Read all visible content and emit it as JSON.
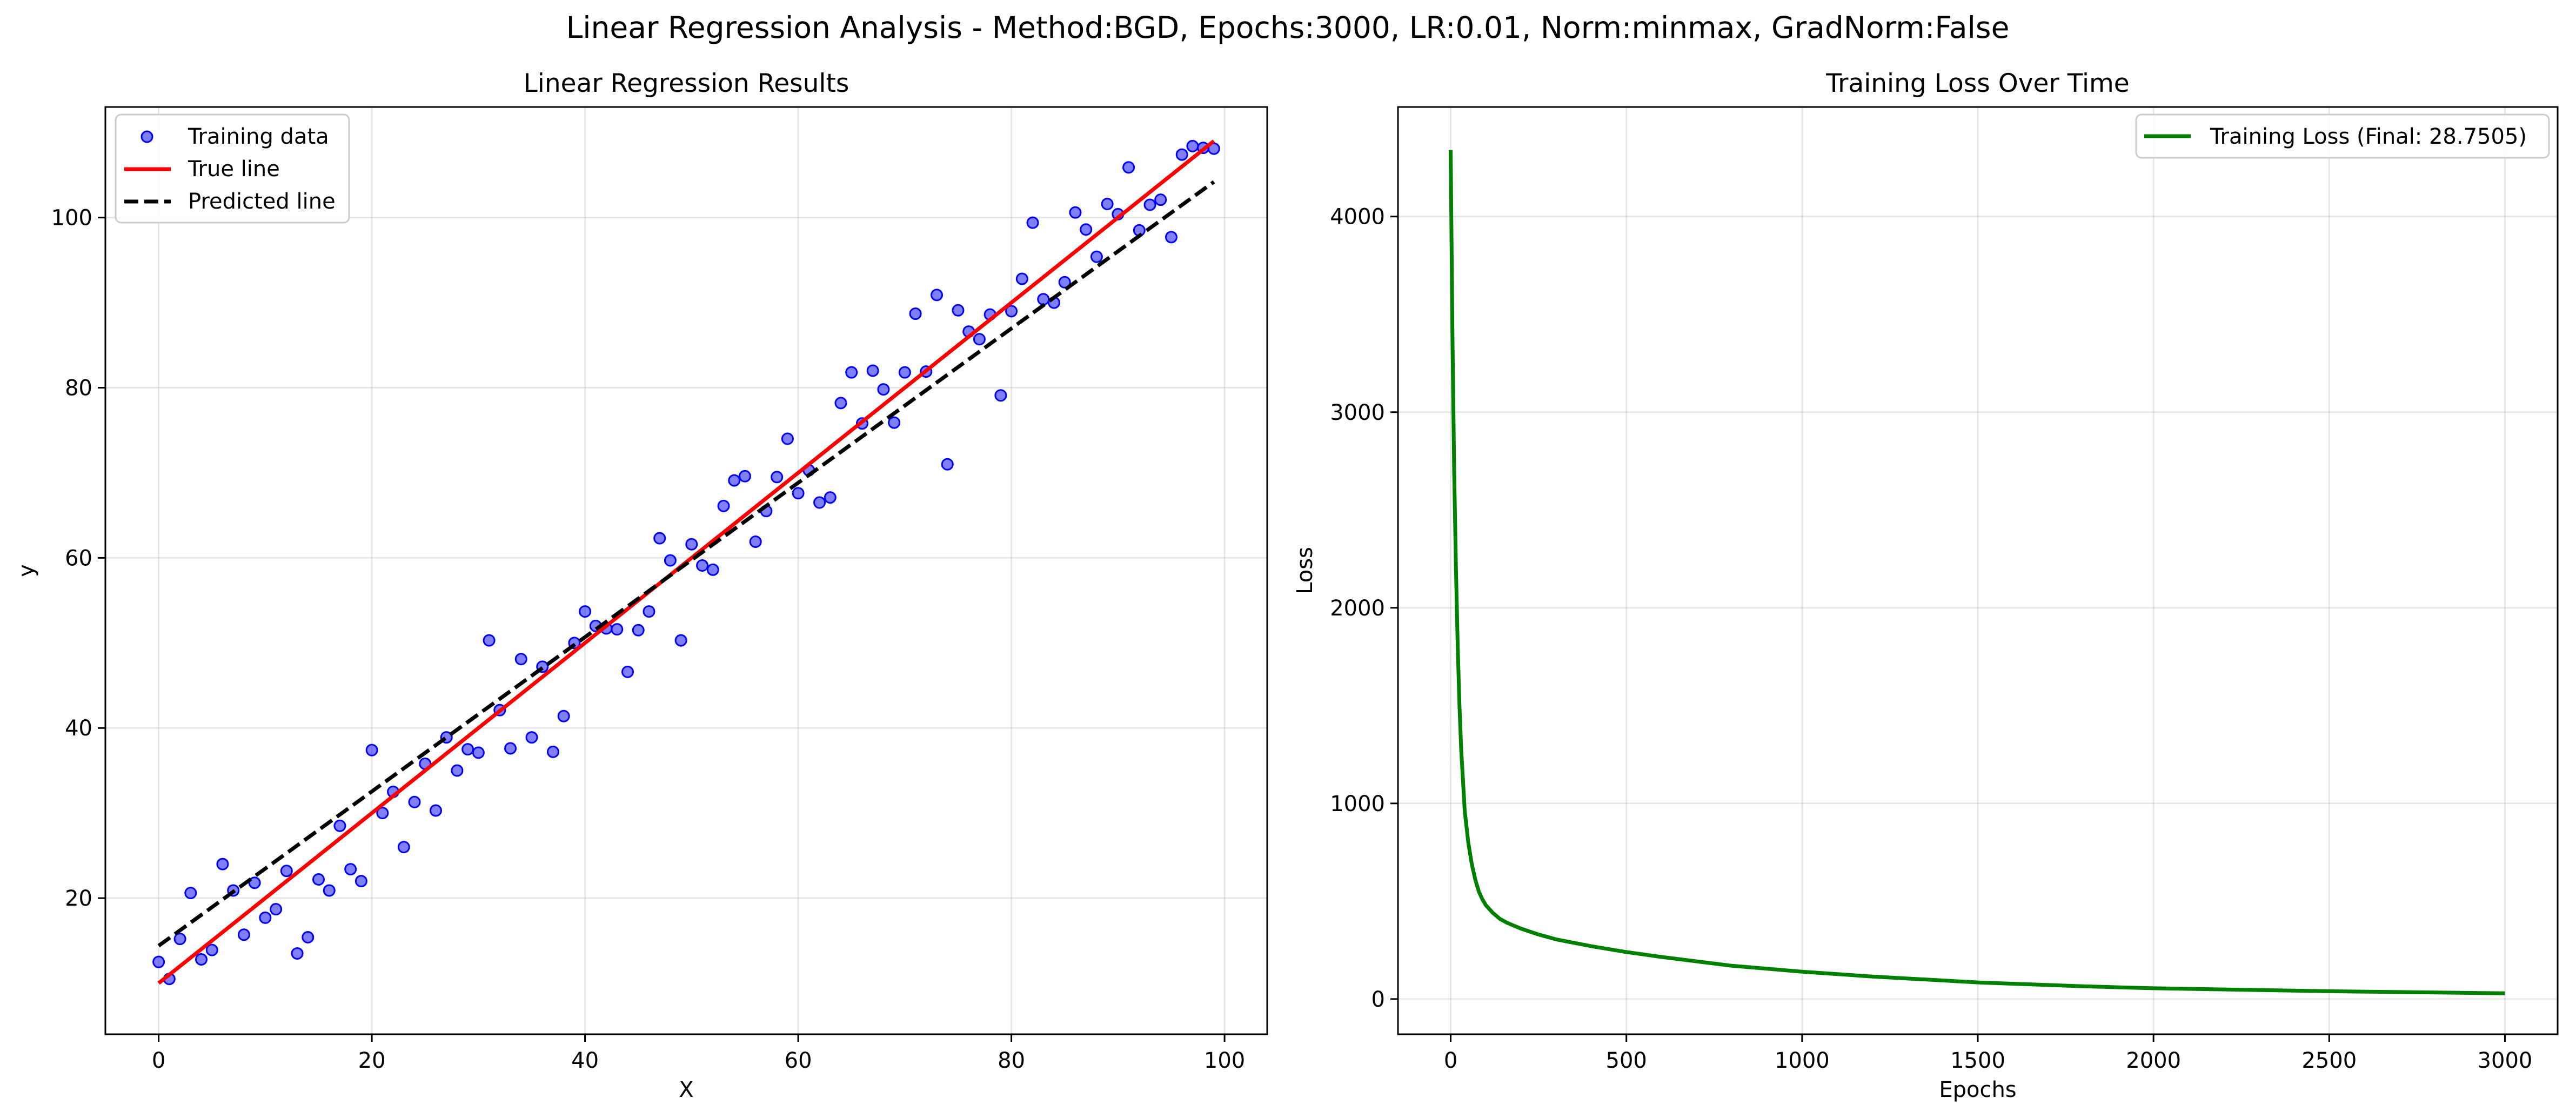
{
  "suptitle": "Linear Regression Analysis - Method:BGD, Epochs:3000, LR:0.01, Norm:minmax, GradNorm:False",
  "chart_data": [
    {
      "type": "scatter",
      "title": "Linear Regression Results",
      "xlabel": "X",
      "ylabel": "y",
      "xlim": [
        -5,
        104
      ],
      "ylim": [
        4,
        113
      ],
      "xticks": [
        0,
        20,
        40,
        60,
        80,
        100
      ],
      "yticks": [
        20,
        40,
        60,
        80,
        100
      ],
      "grid": true,
      "legend_position": "upper-left",
      "colors": {
        "points": "#0000ff",
        "true_line": "#ff0000",
        "predicted_line": "#000000"
      },
      "series": [
        {
          "name": "Training data",
          "kind": "scatter",
          "x": [
            0,
            1,
            2,
            3,
            4,
            5,
            6,
            7,
            8,
            9,
            10,
            11,
            12,
            13,
            14,
            15,
            16,
            17,
            18,
            19,
            20,
            21,
            22,
            23,
            24,
            25,
            26,
            27,
            28,
            29,
            30,
            31,
            32,
            33,
            34,
            35,
            36,
            37,
            38,
            39,
            40,
            41,
            42,
            43,
            44,
            45,
            46,
            47,
            48,
            49,
            50,
            51,
            52,
            53,
            54,
            55,
            56,
            57,
            58,
            59,
            60,
            61,
            62,
            63,
            64,
            65,
            66,
            67,
            68,
            69,
            70,
            71,
            72,
            73,
            74,
            75,
            76,
            77,
            78,
            79,
            80,
            81,
            82,
            83,
            84,
            85,
            86,
            87,
            88,
            89,
            90,
            91,
            92,
            93,
            94,
            95,
            96,
            97,
            98,
            99
          ],
          "y": [
            12.5,
            10.5,
            15.2,
            20.6,
            12.8,
            13.9,
            24.0,
            20.9,
            15.7,
            21.8,
            17.7,
            18.7,
            23.2,
            13.5,
            15.4,
            22.2,
            20.9,
            28.5,
            23.4,
            22.0,
            37.4,
            30.0,
            32.5,
            26.0,
            31.3,
            35.8,
            30.3,
            38.9,
            35.0,
            37.5,
            37.1,
            50.3,
            42.1,
            37.6,
            48.1,
            38.9,
            47.2,
            37.2,
            41.4,
            50.0,
            53.7,
            52.0,
            51.7,
            51.6,
            46.6,
            51.5,
            53.7,
            62.3,
            59.7,
            50.3,
            61.6,
            59.1,
            58.6,
            66.1,
            69.1,
            69.6,
            61.9,
            65.5,
            69.5,
            74.0,
            67.6,
            70.3,
            66.5,
            67.1,
            78.2,
            81.8,
            75.8,
            82.0,
            79.8,
            75.9,
            81.8,
            88.7,
            81.9,
            90.9,
            71.0,
            89.1,
            86.6,
            85.7,
            88.6,
            79.1,
            89.0,
            92.8,
            99.4,
            90.4,
            90.0,
            92.4,
            100.6,
            98.6,
            95.4,
            101.6,
            100.4,
            105.9,
            98.5,
            101.5,
            102.1,
            97.7,
            107.4,
            108.4,
            108.2,
            108.1
          ]
        },
        {
          "name": "True line",
          "kind": "line",
          "x": [
            0,
            99
          ],
          "y": [
            10.0,
            109.0
          ]
        },
        {
          "name": "Predicted line",
          "kind": "line",
          "x": [
            0,
            99
          ],
          "y": [
            14.4,
            104.2
          ]
        }
      ]
    },
    {
      "type": "line",
      "title": "Training Loss Over Time",
      "xlabel": "Epochs",
      "ylabel": "Loss",
      "xlim": [
        -150,
        3150
      ],
      "ylim": [
        -180,
        4560
      ],
      "xticks": [
        0,
        500,
        1000,
        1500,
        2000,
        2500,
        3000
      ],
      "yticks": [
        0,
        1000,
        2000,
        3000,
        4000
      ],
      "grid": true,
      "legend_position": "upper-right",
      "colors": {
        "loss": "#008000"
      },
      "series": [
        {
          "name": "Training Loss (Final: 28.7505)",
          "x": [
            0,
            5,
            10,
            15,
            20,
            25,
            30,
            40,
            50,
            60,
            70,
            80,
            90,
            100,
            120,
            140,
            160,
            180,
            200,
            250,
            300,
            400,
            500,
            600,
            800,
            1000,
            1200,
            1500,
            1800,
            2000,
            2500,
            3000
          ],
          "y": [
            4340,
            3400,
            2700,
            2200,
            1800,
            1500,
            1270,
            960,
            800,
            690,
            610,
            550,
            510,
            480,
            440,
            410,
            390,
            375,
            360,
            330,
            305,
            270,
            240,
            215,
            170,
            140,
            115,
            85,
            65,
            55,
            40,
            29
          ]
        }
      ]
    }
  ]
}
